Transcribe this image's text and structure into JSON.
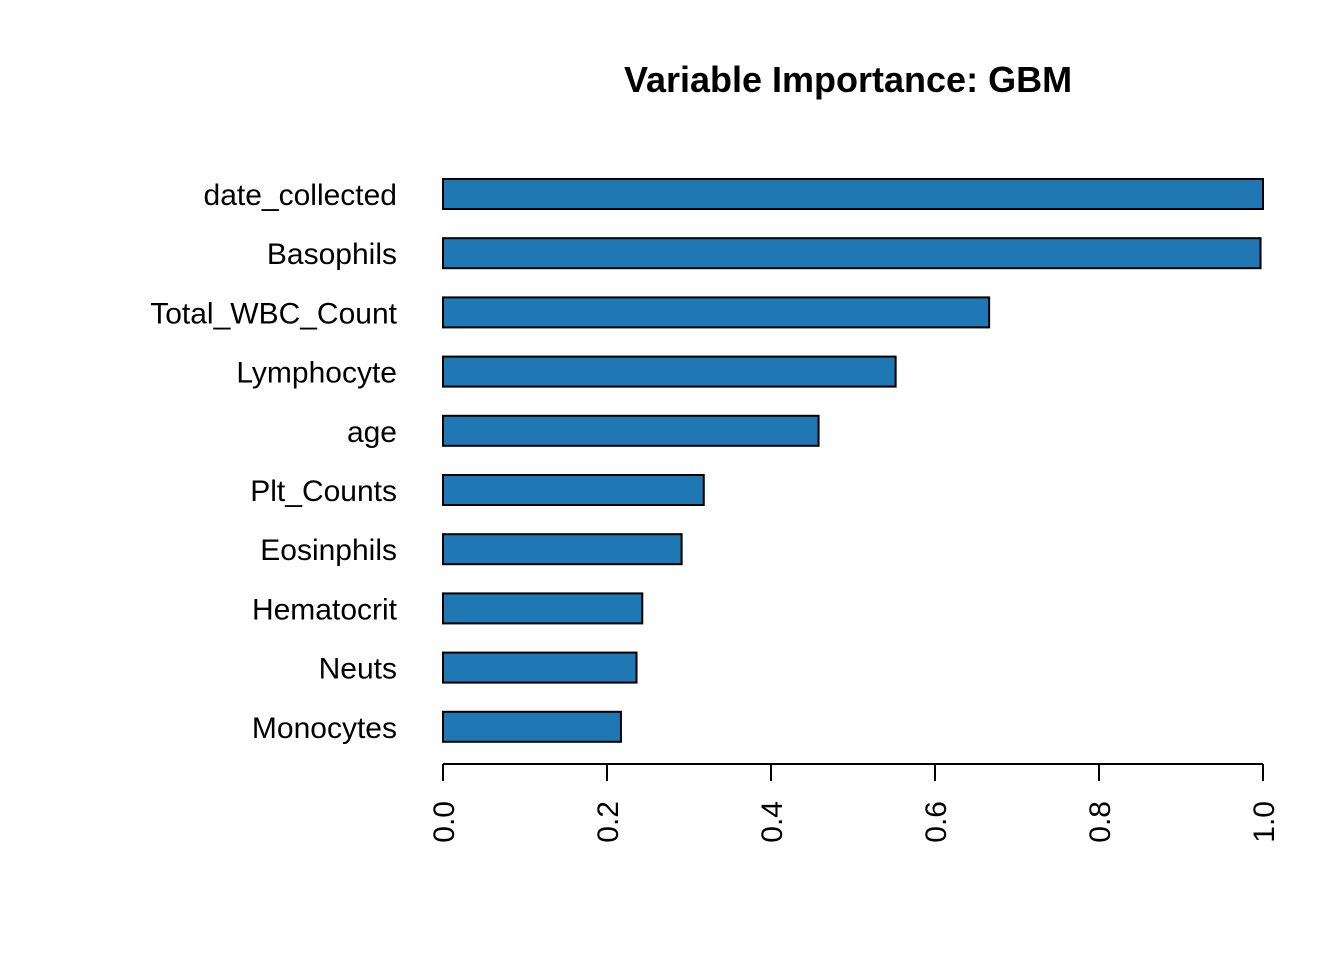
{
  "chart_data": {
    "type": "bar",
    "orientation": "horizontal",
    "title": "Variable Importance: GBM",
    "xlabel": "",
    "ylabel": "",
    "categories": [
      "date_collected",
      "Basophils",
      "Total_WBC_Count",
      "Lymphocyte",
      "age",
      "Plt_Counts",
      "Eosinphils",
      "Hematocrit",
      "Neuts",
      "Monocytes"
    ],
    "values": [
      1.0,
      0.997,
      0.666,
      0.552,
      0.458,
      0.318,
      0.291,
      0.243,
      0.236,
      0.217
    ],
    "xlim": [
      0,
      1
    ],
    "x_ticks": [
      0.0,
      0.2,
      0.4,
      0.6,
      0.8,
      1.0
    ],
    "x_tick_labels": [
      "0.0",
      "0.2",
      "0.4",
      "0.6",
      "0.8",
      "1.0"
    ],
    "tick_label_rotation": "vertical",
    "bar_color": "#1F78B4",
    "grid": false,
    "legend": "none"
  }
}
